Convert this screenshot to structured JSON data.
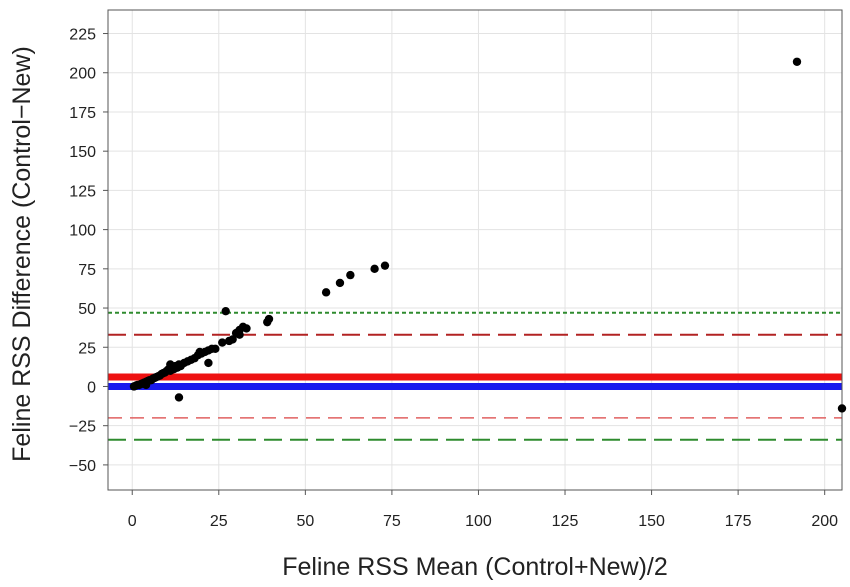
{
  "chart_data": {
    "type": "scatter",
    "title": "",
    "xlabel": "Feline RSS Mean (Control+New)/2",
    "ylabel": "Feline RSS Difference (Control−New)",
    "xlim": [
      -7,
      205
    ],
    "ylim": [
      -66,
      240
    ],
    "x_ticks": [
      0,
      25,
      50,
      75,
      100,
      125,
      150,
      175,
      200
    ],
    "y_ticks": [
      -50,
      -25,
      0,
      25,
      50,
      75,
      100,
      125,
      150,
      175,
      200,
      225
    ],
    "grid": true,
    "points": [
      {
        "x": 0.5,
        "y": 0
      },
      {
        "x": 1,
        "y": 0.5
      },
      {
        "x": 1.5,
        "y": 1
      },
      {
        "x": 2,
        "y": 1
      },
      {
        "x": 2.5,
        "y": 1.5
      },
      {
        "x": 3,
        "y": 2
      },
      {
        "x": 3.5,
        "y": 2.5
      },
      {
        "x": 4,
        "y": 3
      },
      {
        "x": 4,
        "y": 1
      },
      {
        "x": 4.5,
        "y": 3.5
      },
      {
        "x": 5,
        "y": 4
      },
      {
        "x": 5.5,
        "y": 4
      },
      {
        "x": 6,
        "y": 5
      },
      {
        "x": 6.5,
        "y": 5.5
      },
      {
        "x": 7,
        "y": 6
      },
      {
        "x": 7.5,
        "y": 6.5
      },
      {
        "x": 8,
        "y": 7
      },
      {
        "x": 8.5,
        "y": 8
      },
      {
        "x": 9,
        "y": 8.5
      },
      {
        "x": 9.5,
        "y": 9
      },
      {
        "x": 10,
        "y": 10
      },
      {
        "x": 10.5,
        "y": 11
      },
      {
        "x": 11,
        "y": 10
      },
      {
        "x": 11,
        "y": 14
      },
      {
        "x": 11.5,
        "y": 12
      },
      {
        "x": 12,
        "y": 11
      },
      {
        "x": 12.5,
        "y": 13
      },
      {
        "x": 13,
        "y": 12
      },
      {
        "x": 13.5,
        "y": 14
      },
      {
        "x": 14,
        "y": 13
      },
      {
        "x": 13.5,
        "y": -7
      },
      {
        "x": 15,
        "y": 15
      },
      {
        "x": 16,
        "y": 16
      },
      {
        "x": 17,
        "y": 17
      },
      {
        "x": 18,
        "y": 18
      },
      {
        "x": 19,
        "y": 20
      },
      {
        "x": 19.5,
        "y": 22
      },
      {
        "x": 20,
        "y": 21
      },
      {
        "x": 21,
        "y": 22
      },
      {
        "x": 22,
        "y": 23
      },
      {
        "x": 22,
        "y": 15
      },
      {
        "x": 23,
        "y": 24
      },
      {
        "x": 24,
        "y": 24
      },
      {
        "x": 26,
        "y": 28
      },
      {
        "x": 27,
        "y": 48
      },
      {
        "x": 28,
        "y": 29
      },
      {
        "x": 29,
        "y": 30
      },
      {
        "x": 30,
        "y": 34
      },
      {
        "x": 31,
        "y": 36
      },
      {
        "x": 31,
        "y": 33
      },
      {
        "x": 32,
        "y": 38
      },
      {
        "x": 33,
        "y": 37
      },
      {
        "x": 39,
        "y": 41
      },
      {
        "x": 39.5,
        "y": 43
      },
      {
        "x": 56,
        "y": 60
      },
      {
        "x": 60,
        "y": 66
      },
      {
        "x": 63,
        "y": 71
      },
      {
        "x": 70,
        "y": 75
      },
      {
        "x": 73,
        "y": 77
      },
      {
        "x": 192,
        "y": 207
      },
      {
        "x": 205,
        "y": -14
      }
    ],
    "reference_lines": [
      {
        "y": 47,
        "color": "#2e8b2e",
        "style": "dotted"
      },
      {
        "y": 33,
        "color": "#b22222",
        "style": "dashed"
      },
      {
        "y": 6,
        "color": "#ee1111",
        "style": "solid-thick"
      },
      {
        "y": 0,
        "color": "#1a1aee",
        "style": "solid-thick"
      },
      {
        "y": -20,
        "color": "#e06060",
        "style": "dashed-thin"
      },
      {
        "y": -34,
        "color": "#2e8b2e",
        "style": "dashed"
      }
    ]
  }
}
